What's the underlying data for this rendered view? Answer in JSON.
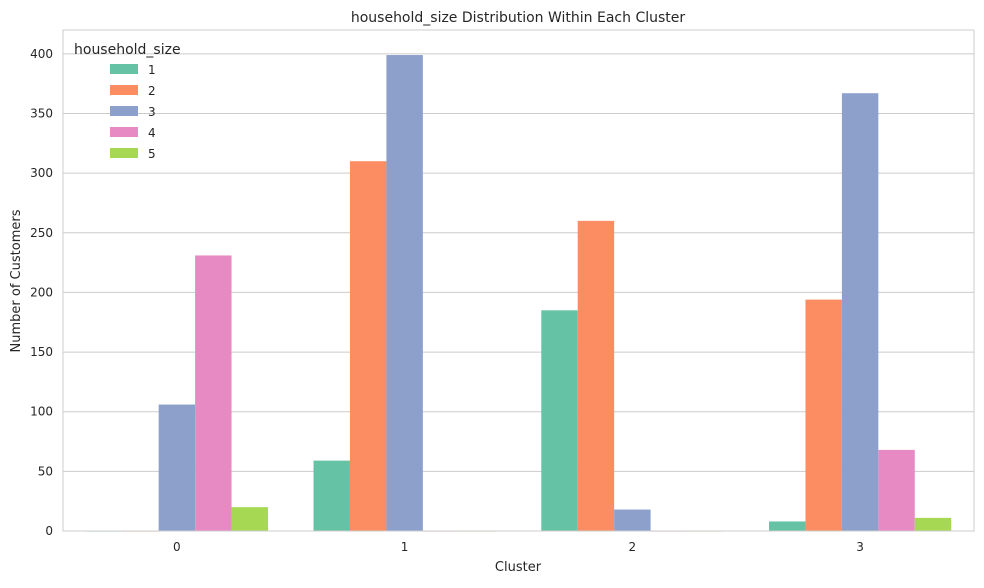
{
  "chart_data": {
    "type": "bar",
    "title": "household_size Distribution Within Each Cluster",
    "xlabel": "Cluster",
    "ylabel": "Number of Customers",
    "categories": [
      "0",
      "1",
      "2",
      "3"
    ],
    "ylim": [
      0,
      420
    ],
    "yticks": [
      0,
      50,
      100,
      150,
      200,
      250,
      300,
      350,
      400
    ],
    "grid": true,
    "legend": {
      "title": "household_size",
      "placement": "top-left"
    },
    "series": [
      {
        "name": "1",
        "color": "#66c2a5",
        "values": [
          0,
          59,
          185,
          8
        ]
      },
      {
        "name": "2",
        "color": "#fc8d62",
        "values": [
          0,
          310,
          260,
          194
        ]
      },
      {
        "name": "3",
        "color": "#8da0cb",
        "values": [
          106,
          399,
          18,
          367
        ]
      },
      {
        "name": "4",
        "color": "#e78ac3",
        "values": [
          231,
          0,
          0,
          68
        ]
      },
      {
        "name": "5",
        "color": "#a6d854",
        "values": [
          20,
          0,
          0,
          11
        ]
      }
    ]
  }
}
